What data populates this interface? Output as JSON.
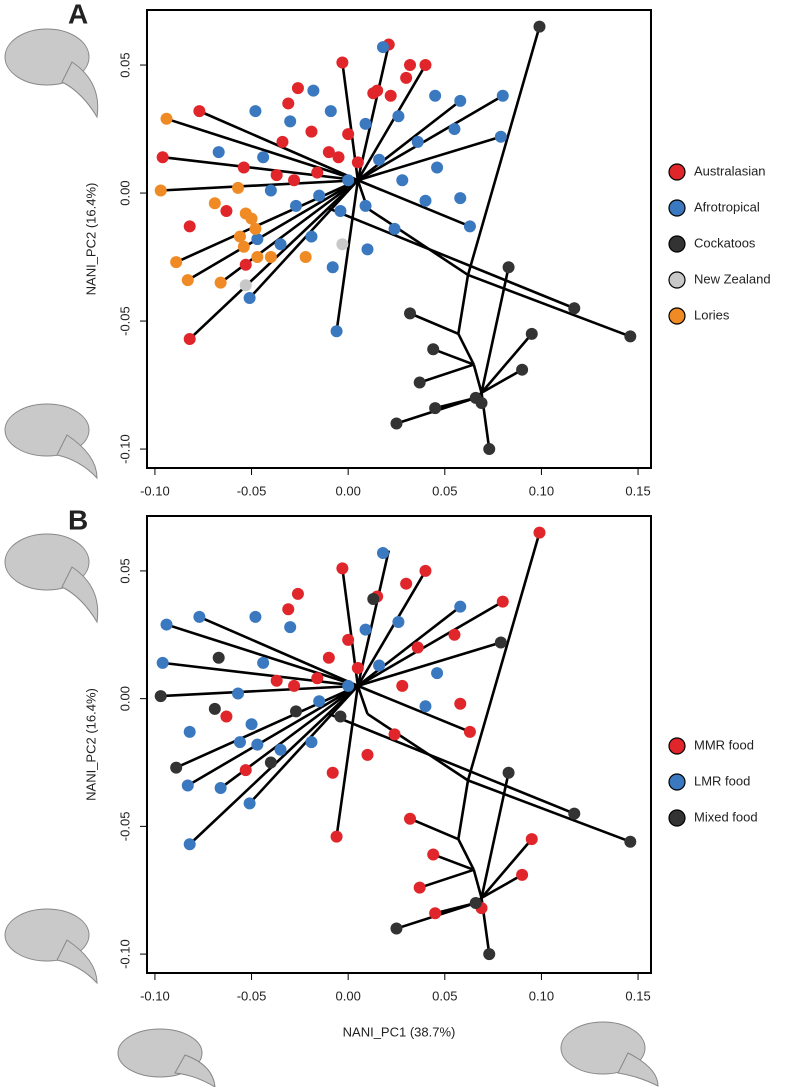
{
  "chart_data": [
    {
      "type": "scatter",
      "panel": "A",
      "ylabel": "NANI_PC2 (16.4%)",
      "legend": "right",
      "xlim": [
        -0.1041,
        0.1567
      ],
      "ylim": [
        -0.1074,
        0.0715
      ],
      "xticks": [
        {
          "value": -0.1,
          "label": "-0.10"
        },
        -0.05,
        {
          "value": 0,
          "label": "0.00"
        },
        0.05,
        {
          "value": 0.1,
          "label": "0.10"
        },
        0.15
      ],
      "yticks": [
        {
          "value": -0.1,
          "label": "-0.10"
        },
        -0.05,
        {
          "value": 0,
          "label": "0.00"
        },
        0.05
      ],
      "series": [
        {
          "name": "Australasian",
          "color": "#e0262a",
          "x": [
            0.021,
            0.04,
            -0.003,
            0.03,
            0.015,
            0.022,
            -0.026,
            -0.031,
            -0.077,
            -0.096,
            -0.054,
            -0.034,
            -0.019,
            -0.01,
            0.0,
            0.005,
            -0.016,
            -0.028,
            -0.037,
            -0.082,
            -0.063,
            -0.053,
            -0.082,
            -0.005,
            0.032,
            0.013
          ],
          "y": [
            0.058,
            0.05,
            0.051,
            0.045,
            0.04,
            0.038,
            0.041,
            0.035,
            0.032,
            0.014,
            0.01,
            0.02,
            0.024,
            0.016,
            0.023,
            0.012,
            0.008,
            0.005,
            0.007,
            -0.013,
            -0.007,
            -0.028,
            -0.057,
            0.014,
            0.05,
            0.039
          ]
        },
        {
          "name": "Afrotropical",
          "color": "#3a78c0",
          "x": [
            0.018,
            -0.018,
            -0.048,
            -0.067,
            -0.044,
            -0.03,
            -0.009,
            0.009,
            0.026,
            0.045,
            0.058,
            0.08,
            0.079,
            0.055,
            0.036,
            0.016,
            0.0,
            -0.015,
            -0.027,
            -0.04,
            -0.047,
            -0.035,
            -0.019,
            -0.008,
            -0.006,
            -0.051,
            0.01,
            0.024,
            0.04,
            0.058,
            0.063,
            0.046,
            0.028,
            0.009,
            -0.004
          ],
          "y": [
            0.057,
            0.04,
            0.032,
            0.016,
            0.014,
            0.028,
            0.032,
            0.027,
            0.03,
            0.038,
            0.036,
            0.038,
            0.022,
            0.025,
            0.02,
            0.013,
            0.005,
            -0.001,
            -0.005,
            0.001,
            -0.018,
            -0.02,
            -0.017,
            -0.029,
            -0.054,
            -0.041,
            -0.022,
            -0.014,
            -0.003,
            -0.002,
            -0.013,
            0.01,
            0.005,
            -0.005,
            -0.007
          ]
        },
        {
          "name": "Cockatoos",
          "color": "#333333",
          "x": [
            0.099,
            0.117,
            0.146,
            0.083,
            0.095,
            0.032,
            0.044,
            0.037,
            0.09,
            0.066,
            0.069,
            0.045,
            0.025,
            0.073
          ],
          "y": [
            0.065,
            -0.045,
            -0.056,
            -0.029,
            -0.055,
            -0.047,
            -0.061,
            -0.074,
            -0.069,
            -0.08,
            -0.082,
            -0.084,
            -0.09,
            -0.1
          ]
        },
        {
          "name": "New Zealand",
          "color": "#c8c8c8",
          "x": [
            -0.003,
            -0.053
          ],
          "y": [
            -0.02,
            -0.036
          ]
        },
        {
          "name": "Lories",
          "color": "#f08a24",
          "x": [
            -0.094,
            -0.097,
            -0.089,
            -0.083,
            -0.066,
            -0.069,
            -0.057,
            -0.053,
            -0.05,
            -0.056,
            -0.054,
            -0.047,
            -0.04,
            -0.022,
            -0.048
          ],
          "y": [
            0.029,
            0.001,
            -0.027,
            -0.034,
            -0.035,
            -0.004,
            0.002,
            -0.008,
            -0.01,
            -0.017,
            -0.021,
            -0.025,
            -0.025,
            -0.025,
            -0.014
          ]
        }
      ],
      "branches": [
        {
          "x": [
            0.099,
            0.062
          ],
          "y": [
            0.065,
            -0.032
          ]
        },
        {
          "x": [
            0.062,
            0.146
          ],
          "y": [
            -0.032,
            -0.056
          ]
        },
        {
          "x": [
            0.062,
            0.057
          ],
          "y": [
            -0.032,
            -0.055
          ]
        },
        {
          "x": [
            0.057,
            0.032
          ],
          "y": [
            -0.055,
            -0.047
          ]
        },
        {
          "x": [
            0.057,
            0.065
          ],
          "y": [
            -0.055,
            -0.067
          ]
        },
        {
          "x": [
            0.065,
            0.037
          ],
          "y": [
            -0.067,
            -0.074
          ]
        },
        {
          "x": [
            0.065,
            0.044
          ],
          "y": [
            -0.067,
            -0.061
          ]
        },
        {
          "x": [
            0.065,
            0.069
          ],
          "y": [
            -0.067,
            -0.078
          ]
        },
        {
          "x": [
            0.069,
            0.083
          ],
          "y": [
            -0.078,
            -0.029
          ]
        },
        {
          "x": [
            0.069,
            0.095
          ],
          "y": [
            -0.078,
            -0.055
          ]
        },
        {
          "x": [
            0.069,
            0.09
          ],
          "y": [
            -0.078,
            -0.069
          ]
        },
        {
          "x": [
            0.069,
            0.073
          ],
          "y": [
            -0.078,
            -0.1
          ]
        },
        {
          "x": [
            0.069,
            0.066
          ],
          "y": [
            -0.078,
            -0.08
          ]
        },
        {
          "x": [
            0.066,
            0.045
          ],
          "y": [
            -0.08,
            -0.084
          ]
        },
        {
          "x": [
            0.066,
            0.025
          ],
          "y": [
            -0.08,
            -0.09
          ]
        },
        {
          "x": [
            0.01,
            0.062
          ],
          "y": [
            -0.006,
            -0.032
          ]
        },
        {
          "x": [
            -0.01,
            0.117
          ],
          "y": [
            -0.006,
            -0.045
          ]
        },
        {
          "x": [
            0.005,
            0.021
          ],
          "y": [
            0.005,
            0.058
          ]
        },
        {
          "x": [
            0.005,
            0.08
          ],
          "y": [
            0.005,
            0.038
          ]
        },
        {
          "x": [
            0.005,
            0.079
          ],
          "y": [
            0.005,
            0.022
          ]
        },
        {
          "x": [
            0.005,
            -0.082
          ],
          "y": [
            0.005,
            -0.057
          ]
        },
        {
          "x": [
            0.005,
            -0.096
          ],
          "y": [
            0.005,
            0.014
          ]
        },
        {
          "x": [
            0.005,
            -0.094
          ],
          "y": [
            0.005,
            0.029
          ]
        },
        {
          "x": [
            0.005,
            -0.097
          ],
          "y": [
            0.005,
            0.001
          ]
        },
        {
          "x": [
            0.005,
            -0.089
          ],
          "y": [
            0.005,
            -0.027
          ]
        },
        {
          "x": [
            0.005,
            -0.006
          ],
          "y": [
            0.005,
            -0.054
          ]
        },
        {
          "x": [
            0.005,
            0.063
          ],
          "y": [
            0.005,
            -0.013
          ]
        },
        {
          "x": [
            0.005,
            0.04
          ],
          "y": [
            0.005,
            0.05
          ]
        },
        {
          "x": [
            0.005,
            -0.003
          ],
          "y": [
            0.005,
            0.051
          ]
        },
        {
          "x": [
            0.005,
            -0.077
          ],
          "y": [
            0.005,
            0.032
          ]
        },
        {
          "x": [
            0.005,
            -0.083
          ],
          "y": [
            0.005,
            -0.034
          ]
        },
        {
          "x": [
            0.005,
            -0.051
          ],
          "y": [
            0.005,
            -0.041
          ]
        },
        {
          "x": [
            0.005,
            0.058
          ],
          "y": [
            0.005,
            0.036
          ]
        },
        {
          "x": [
            0.005,
            -0.066
          ],
          "y": [
            0.005,
            -0.035
          ]
        },
        {
          "x": [
            0.005,
            0.01
          ],
          "y": [
            0.005,
            -0.006
          ]
        }
      ]
    },
    {
      "type": "scatter",
      "panel": "B",
      "ylabel": "NANI_PC2 (16.4%)",
      "xlabel": "NANI_PC1 (38.7%)",
      "legend": "right",
      "xlim": [
        -0.1041,
        0.1567
      ],
      "ylim": [
        -0.1074,
        0.0715
      ],
      "xticks": [
        {
          "value": -0.1,
          "label": "-0.10"
        },
        -0.05,
        {
          "value": 0,
          "label": "0.00"
        },
        0.05,
        {
          "value": 0.1,
          "label": "0.10"
        },
        0.15
      ],
      "yticks": [
        {
          "value": -0.1,
          "label": "-0.10"
        },
        -0.05,
        {
          "value": 0,
          "label": "0.00"
        },
        0.05
      ],
      "series": [
        {
          "name": "MMR food",
          "color": "#e0262a",
          "x": [
            0.099,
            0.032,
            0.044,
            0.037,
            0.09,
            0.095,
            0.045,
            0.069,
            0.04,
            -0.003,
            0.03,
            0.015,
            -0.026,
            -0.031,
            0.08,
            0.036,
            0.055,
            -0.01,
            0.0,
            0.005,
            -0.016,
            -0.028,
            0.024,
            0.028,
            0.058,
            -0.063,
            -0.053,
            0.01,
            -0.006,
            -0.008,
            0.063,
            -0.037
          ],
          "y": [
            0.065,
            -0.047,
            -0.061,
            -0.074,
            -0.069,
            -0.055,
            -0.084,
            -0.082,
            0.05,
            0.051,
            0.045,
            0.04,
            0.041,
            0.035,
            0.038,
            0.02,
            0.025,
            0.016,
            0.023,
            0.012,
            0.008,
            0.005,
            -0.014,
            0.005,
            -0.002,
            -0.007,
            -0.028,
            -0.022,
            -0.054,
            -0.029,
            -0.013,
            0.007
          ]
        },
        {
          "name": "LMR food",
          "color": "#3a78c0",
          "x": [
            0.018,
            -0.094,
            -0.077,
            -0.096,
            -0.082,
            -0.082,
            -0.083,
            -0.066,
            -0.051,
            -0.048,
            -0.044,
            -0.03,
            0.009,
            0.026,
            0.046,
            0.016,
            0.0,
            -0.015,
            -0.047,
            -0.035,
            -0.019,
            -0.056,
            -0.05,
            -0.057,
            0.058,
            0.04
          ],
          "y": [
            0.057,
            0.029,
            0.032,
            0.014,
            -0.013,
            -0.057,
            -0.034,
            -0.035,
            -0.041,
            0.032,
            0.014,
            0.028,
            0.027,
            0.03,
            0.01,
            0.013,
            0.005,
            -0.001,
            -0.018,
            -0.02,
            -0.017,
            -0.017,
            -0.01,
            0.002,
            0.036,
            -0.003
          ]
        },
        {
          "name": "Mixed food",
          "color": "#333333",
          "x": [
            0.117,
            0.146,
            0.083,
            0.066,
            0.025,
            0.073,
            -0.097,
            -0.089,
            -0.067,
            -0.069,
            -0.04,
            0.079,
            0.013,
            -0.004,
            -0.027
          ],
          "y": [
            -0.045,
            -0.056,
            -0.029,
            -0.08,
            -0.09,
            -0.1,
            0.001,
            -0.027,
            0.016,
            -0.004,
            -0.025,
            0.022,
            0.039,
            -0.007,
            -0.005
          ]
        }
      ],
      "branches": [
        {
          "x": [
            0.099,
            0.062
          ],
          "y": [
            0.065,
            -0.032
          ]
        },
        {
          "x": [
            0.062,
            0.146
          ],
          "y": [
            -0.032,
            -0.056
          ]
        },
        {
          "x": [
            0.062,
            0.057
          ],
          "y": [
            -0.032,
            -0.055
          ]
        },
        {
          "x": [
            0.057,
            0.032
          ],
          "y": [
            -0.055,
            -0.047
          ]
        },
        {
          "x": [
            0.057,
            0.065
          ],
          "y": [
            -0.055,
            -0.067
          ]
        },
        {
          "x": [
            0.065,
            0.037
          ],
          "y": [
            -0.067,
            -0.074
          ]
        },
        {
          "x": [
            0.065,
            0.044
          ],
          "y": [
            -0.067,
            -0.061
          ]
        },
        {
          "x": [
            0.065,
            0.069
          ],
          "y": [
            -0.067,
            -0.078
          ]
        },
        {
          "x": [
            0.069,
            0.083
          ],
          "y": [
            -0.078,
            -0.029
          ]
        },
        {
          "x": [
            0.069,
            0.095
          ],
          "y": [
            -0.078,
            -0.055
          ]
        },
        {
          "x": [
            0.069,
            0.09
          ],
          "y": [
            -0.078,
            -0.069
          ]
        },
        {
          "x": [
            0.069,
            0.073
          ],
          "y": [
            -0.078,
            -0.1
          ]
        },
        {
          "x": [
            0.069,
            0.066
          ],
          "y": [
            -0.078,
            -0.08
          ]
        },
        {
          "x": [
            0.066,
            0.045
          ],
          "y": [
            -0.08,
            -0.084
          ]
        },
        {
          "x": [
            0.066,
            0.025
          ],
          "y": [
            -0.08,
            -0.09
          ]
        },
        {
          "x": [
            0.01,
            0.062
          ],
          "y": [
            -0.006,
            -0.032
          ]
        },
        {
          "x": [
            -0.01,
            0.117
          ],
          "y": [
            -0.006,
            -0.045
          ]
        },
        {
          "x": [
            0.005,
            0.021
          ],
          "y": [
            0.005,
            0.058
          ]
        },
        {
          "x": [
            0.005,
            0.08
          ],
          "y": [
            0.005,
            0.038
          ]
        },
        {
          "x": [
            0.005,
            0.079
          ],
          "y": [
            0.005,
            0.022
          ]
        },
        {
          "x": [
            0.005,
            -0.082
          ],
          "y": [
            0.005,
            -0.057
          ]
        },
        {
          "x": [
            0.005,
            -0.096
          ],
          "y": [
            0.005,
            0.014
          ]
        },
        {
          "x": [
            0.005,
            -0.094
          ],
          "y": [
            0.005,
            0.029
          ]
        },
        {
          "x": [
            0.005,
            -0.097
          ],
          "y": [
            0.005,
            0.001
          ]
        },
        {
          "x": [
            0.005,
            -0.089
          ],
          "y": [
            0.005,
            -0.027
          ]
        },
        {
          "x": [
            0.005,
            -0.006
          ],
          "y": [
            0.005,
            -0.054
          ]
        },
        {
          "x": [
            0.005,
            0.063
          ],
          "y": [
            0.005,
            -0.013
          ]
        },
        {
          "x": [
            0.005,
            0.04
          ],
          "y": [
            0.005,
            0.05
          ]
        },
        {
          "x": [
            0.005,
            -0.003
          ],
          "y": [
            0.005,
            0.051
          ]
        },
        {
          "x": [
            0.005,
            -0.077
          ],
          "y": [
            0.005,
            0.032
          ]
        },
        {
          "x": [
            0.005,
            -0.083
          ],
          "y": [
            0.005,
            -0.034
          ]
        },
        {
          "x": [
            0.005,
            -0.051
          ],
          "y": [
            0.005,
            -0.041
          ]
        },
        {
          "x": [
            0.005,
            0.058
          ],
          "y": [
            0.005,
            0.036
          ]
        },
        {
          "x": [
            0.005,
            -0.066
          ],
          "y": [
            0.005,
            -0.035
          ]
        },
        {
          "x": [
            0.005,
            0.01
          ],
          "y": [
            0.005,
            -0.006
          ]
        }
      ]
    }
  ]
}
